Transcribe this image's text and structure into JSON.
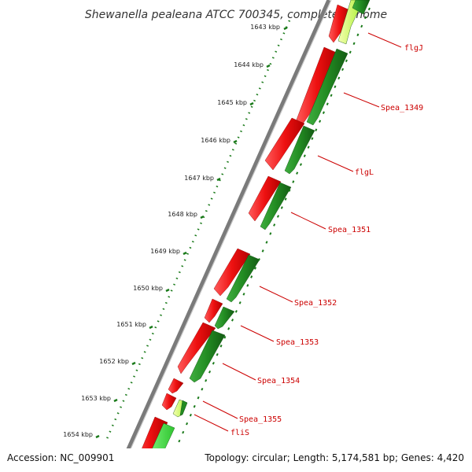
{
  "title": "Shewanella pealeana ATCC 700345, complete genome",
  "accession": "Accession: NC_009901",
  "summary": "Topology: circular; Length: 5,174,581 bp; Genes: 4,420",
  "ticks": [
    "1643 kbp",
    "1644 kbp",
    "1645 kbp",
    "1646 kbp",
    "1647 kbp",
    "1648 kbp",
    "1649 kbp",
    "1650 kbp",
    "1651 kbp",
    "1652 kbp",
    "1653 kbp",
    "1654 kbp"
  ],
  "gene_labels": [
    "flgJ",
    "Spea_1349",
    "flgL",
    "Spea_1351",
    "Spea_1352",
    "Spea_1353",
    "Spea_1354",
    "Spea_1355",
    "fliS"
  ],
  "colors": {
    "backbone": "#808080",
    "forward_strand": "#ee1111",
    "reverse_strand": "#228b22",
    "highlight": "#bfff3f",
    "label": "#cc0000",
    "tick": "#1a7a1a"
  }
}
